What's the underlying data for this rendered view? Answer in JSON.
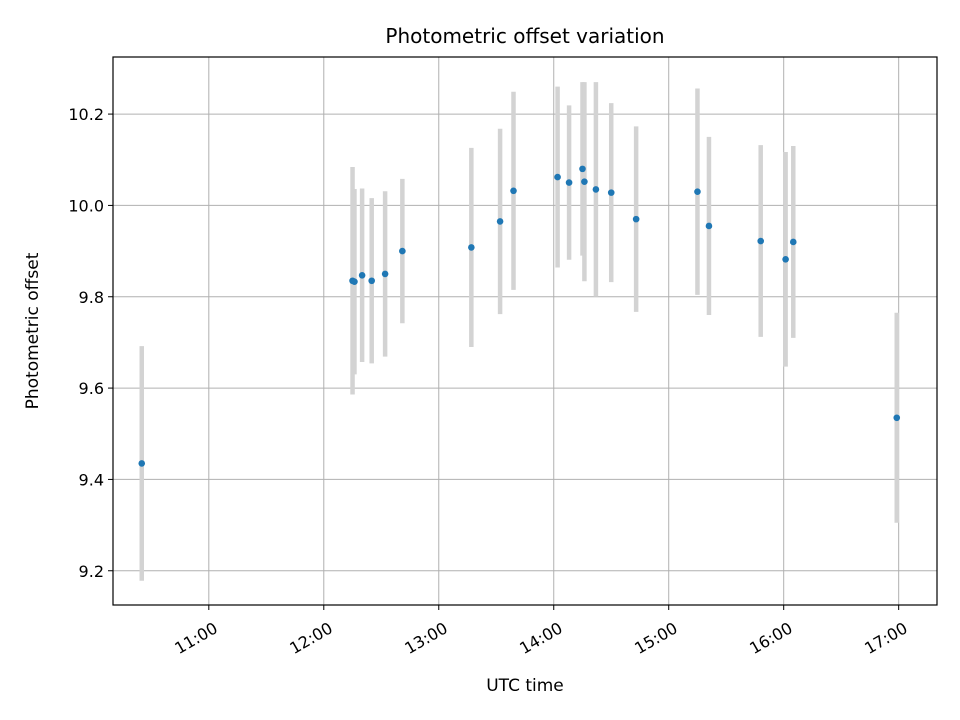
{
  "chart_data": {
    "type": "scatter",
    "title": "Photometric offset variation",
    "xlabel": "UTC time",
    "ylabel": "Photometric offset",
    "x_ticks": [
      "11:00",
      "12:00",
      "13:00",
      "14:00",
      "15:00",
      "16:00",
      "17:00"
    ],
    "y_ticks": [
      9.2,
      9.4,
      9.6,
      9.8,
      10.0,
      10.2
    ],
    "xlim": [
      "10:10",
      "17:20"
    ],
    "ylim": [
      9.125,
      10.325
    ],
    "grid": true,
    "colors": {
      "point": "#1f77b4",
      "errorbar": "#d3d3d3",
      "grid": "#b0b0b0"
    },
    "series": [
      {
        "points": [
          {
            "x": "10:25",
            "y": 9.435,
            "err": 0.257
          },
          {
            "x": "12:15",
            "y": 9.835,
            "err": 0.249
          },
          {
            "x": "12:16",
            "y": 9.833,
            "err": 0.203
          },
          {
            "x": "12:20",
            "y": 9.847,
            "err": 0.19
          },
          {
            "x": "12:25",
            "y": 9.835,
            "err": 0.181
          },
          {
            "x": "12:32",
            "y": 9.85,
            "err": 0.181
          },
          {
            "x": "12:41",
            "y": 9.9,
            "err": 0.158
          },
          {
            "x": "13:17",
            "y": 9.908,
            "err": 0.218
          },
          {
            "x": "13:32",
            "y": 9.965,
            "err": 0.203
          },
          {
            "x": "13:39",
            "y": 10.032,
            "err": 0.217
          },
          {
            "x": "14:02",
            "y": 10.062,
            "err": 0.198
          },
          {
            "x": "14:08",
            "y": 10.05,
            "err": 0.169
          },
          {
            "x": "14:15",
            "y": 10.08,
            "err": 0.19
          },
          {
            "x": "14:16",
            "y": 10.052,
            "err": 0.218
          },
          {
            "x": "14:22",
            "y": 10.035,
            "err": 0.235
          },
          {
            "x": "14:30",
            "y": 10.028,
            "err": 0.196
          },
          {
            "x": "14:43",
            "y": 9.97,
            "err": 0.203
          },
          {
            "x": "15:15",
            "y": 10.03,
            "err": 0.226
          },
          {
            "x": "15:21",
            "y": 9.955,
            "err": 0.195
          },
          {
            "x": "15:48",
            "y": 9.922,
            "err": 0.21
          },
          {
            "x": "16:01",
            "y": 9.882,
            "err": 0.235
          },
          {
            "x": "16:05",
            "y": 9.92,
            "err": 0.21
          },
          {
            "x": "16:59",
            "y": 9.535,
            "err": 0.23
          }
        ]
      }
    ]
  }
}
